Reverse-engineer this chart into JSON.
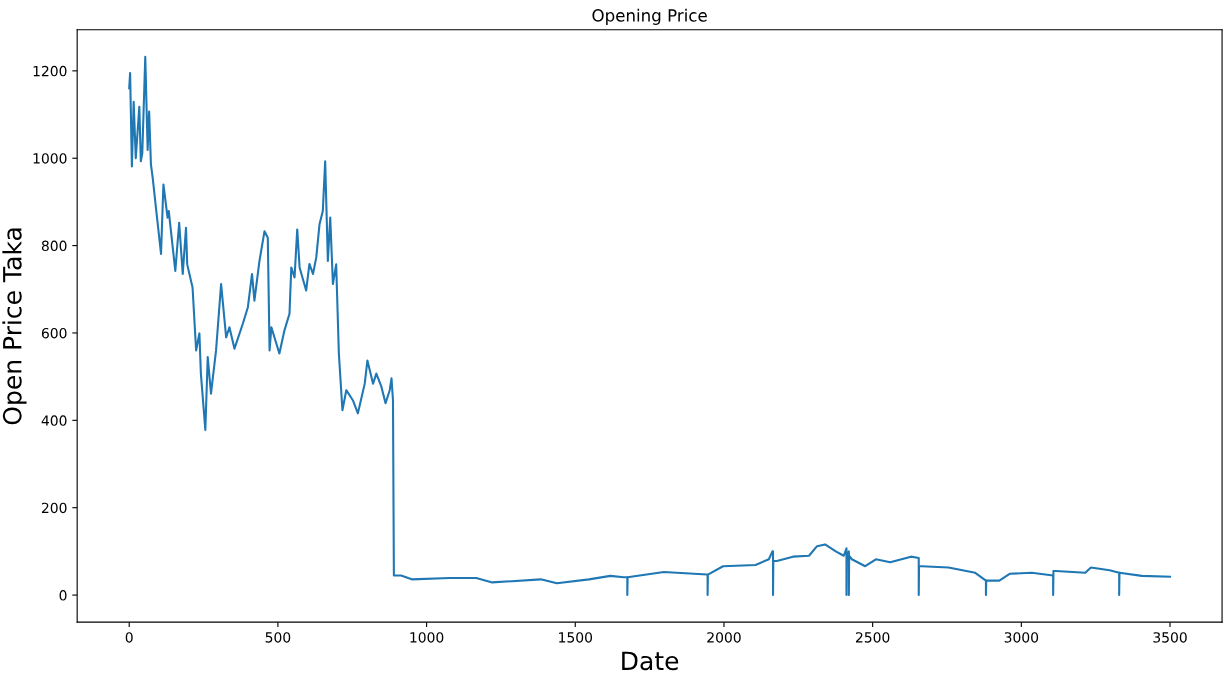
{
  "chart_data": {
    "type": "line",
    "title": "Opening Price",
    "xlabel": "Date",
    "ylabel": "Open Price Taka",
    "xlim": [
      -175,
      3675
    ],
    "ylim": [
      -62,
      1294
    ],
    "xticks": [
      0,
      500,
      1000,
      1500,
      2000,
      2500,
      3000,
      3500
    ],
    "yticks": [
      0,
      200,
      400,
      600,
      800,
      1000,
      1200
    ],
    "grid": false,
    "legend": false,
    "series": [
      {
        "color": "#1f77b4",
        "x": [
          0,
          3,
          9,
          15,
          22,
          34,
          39,
          44,
          54,
          62,
          67,
          73,
          79,
          90,
          107,
          115,
          129,
          133,
          155,
          168,
          180,
          191,
          195,
          213,
          225,
          236,
          241,
          256,
          264,
          275,
          292,
          309,
          326,
          337,
          354,
          382,
          399,
          413,
          421,
          438,
          455,
          466,
          472,
          478,
          505,
          522,
          539,
          545,
          556,
          565,
          573,
          595,
          606,
          618,
          629,
          640,
          651,
          659,
          668,
          676,
          685,
          696,
          705,
          717,
          730,
          752,
          769,
          792,
          801,
          820,
          831,
          848,
          862,
          876,
          882,
          887,
          890,
          914,
          950,
          1077,
          1167,
          1221,
          1384,
          1438,
          1546,
          1618,
          1663,
          1675,
          1675,
          1676,
          1798,
          1943,
          1945,
          1945,
          1946,
          1997,
          2106,
          2151,
          2163,
          2165,
          2165,
          2166,
          2178,
          2232,
          2286,
          2313,
          2340,
          2376,
          2403,
          2412,
          2412,
          2413,
          2420,
          2420,
          2421,
          2430,
          2475,
          2511,
          2559,
          2629,
          2655,
          2655,
          2656,
          2665,
          2755,
          2845,
          2881,
          2881,
          2882,
          2926,
          2962,
          3035,
          3107,
          3107,
          3108,
          3116,
          3215,
          3234,
          3297,
          3329,
          3329,
          3330,
          3405,
          3500
        ],
        "values": [
          1160,
          1195,
          981,
          1129,
          1000,
          1118,
          993,
          1012,
          1232,
          1019,
          1107,
          986,
          955,
          886,
          781,
          940,
          864,
          879,
          742,
          852,
          735,
          841,
          757,
          704,
          560,
          599,
          507,
          378,
          545,
          461,
          560,
          712,
          590,
          613,
          564,
          621,
          659,
          735,
          674,
          765,
          833,
          818,
          560,
          613,
          553,
          606,
          644,
          750,
          727,
          837,
          750,
          697,
          758,
          735,
          773,
          849,
          879,
          993,
          765,
          864,
          712,
          757,
          553,
          423,
          469,
          446,
          416,
          484,
          537,
          484,
          507,
          477,
          439,
          469,
          496,
          446,
          45,
          45,
          36,
          39,
          39,
          29,
          36,
          27,
          36,
          44,
          41,
          41,
          0,
          41,
          53,
          47,
          47,
          0,
          47,
          66,
          69,
          82,
          100,
          100,
          0,
          78,
          78,
          88,
          90,
          112,
          116,
          100,
          90,
          107,
          0,
          90,
          100,
          0,
          90,
          82,
          66,
          82,
          75,
          88,
          85,
          0,
          66,
          66,
          63,
          51,
          33,
          0,
          33,
          33,
          49,
          51,
          45,
          0,
          55,
          55,
          51,
          63,
          57,
          51,
          0,
          51,
          44,
          42
        ]
      }
    ]
  }
}
